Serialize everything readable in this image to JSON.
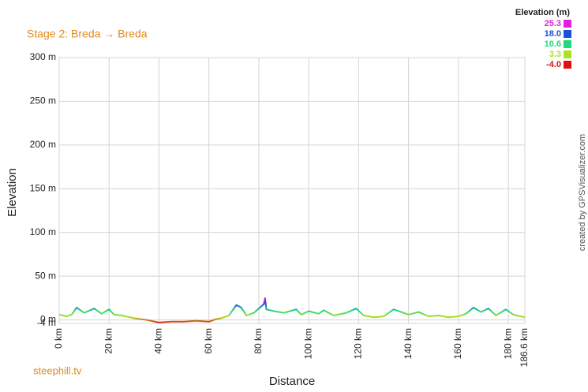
{
  "chart_data": {
    "type": "line",
    "title": "Stage 2: Breda → Breda",
    "ylabel": "Elevation",
    "xlabel": "Distance",
    "source": "steephill.tv",
    "credit": "created by GPSVisualizer.com",
    "legend_title": "Elevation (m)",
    "color_scale": [
      {
        "value": 25.3,
        "label": "25.3",
        "color": "#e020e0"
      },
      {
        "value": 18.0,
        "label": "18.0",
        "color": "#1a4fd8"
      },
      {
        "value": 10.6,
        "label": "10.6",
        "color": "#20d880"
      },
      {
        "value": 3.3,
        "label": "3.3",
        "color": "#b0e020"
      },
      {
        "value": -4.0,
        "label": "-4.0",
        "color": "#e01010"
      }
    ],
    "x": [
      0,
      3,
      5,
      7,
      10,
      14,
      17,
      20,
      22,
      25,
      30,
      35,
      40,
      45,
      50,
      55,
      60,
      63,
      65,
      68,
      71,
      73,
      75,
      78,
      82,
      82.5,
      83,
      86,
      90,
      95,
      97,
      100,
      104,
      106,
      110,
      115,
      119,
      122,
      126,
      130,
      134,
      137,
      140,
      144,
      148,
      152,
      156,
      160,
      163,
      166,
      169,
      172,
      175,
      179,
      182,
      186.6
    ],
    "values": [
      6,
      4,
      6,
      14,
      8,
      13,
      7,
      12,
      6,
      5,
      2,
      0,
      -3,
      -2,
      -2,
      -1,
      -2,
      1,
      2,
      5,
      17,
      14,
      5,
      8,
      18,
      25,
      12,
      10,
      8,
      12,
      6,
      10,
      7,
      11,
      5,
      8,
      13,
      5,
      3,
      4,
      12,
      9,
      6,
      9,
      4,
      5,
      3,
      4,
      7,
      14,
      9,
      13,
      5,
      12,
      6,
      3
    ],
    "xlim": [
      0,
      186.6
    ],
    "xticks": [
      {
        "value": 0,
        "label": "0 km"
      },
      {
        "value": 20,
        "label": "20 km"
      },
      {
        "value": 40,
        "label": "40 km"
      },
      {
        "value": 60,
        "label": "60 km"
      },
      {
        "value": 80,
        "label": "80 km"
      },
      {
        "value": 100,
        "label": "100 km"
      },
      {
        "value": 120,
        "label": "120 km"
      },
      {
        "value": 140,
        "label": "140 km"
      },
      {
        "value": 160,
        "label": "160 km"
      },
      {
        "value": 180,
        "label": "180 km"
      },
      {
        "value": 186.6,
        "label": "186.6 km"
      }
    ],
    "ylim": [
      -4,
      300
    ],
    "yticks": [
      {
        "value": -4,
        "label": "-4 m"
      },
      {
        "value": 0,
        "label": "0 m"
      },
      {
        "value": 50,
        "label": "50 m"
      },
      {
        "value": 100,
        "label": "100 m"
      },
      {
        "value": 150,
        "label": "150 m"
      },
      {
        "value": 200,
        "label": "200 m"
      },
      {
        "value": 250,
        "label": "250 m"
      },
      {
        "value": 300,
        "label": "300 m"
      }
    ],
    "grid": true
  }
}
